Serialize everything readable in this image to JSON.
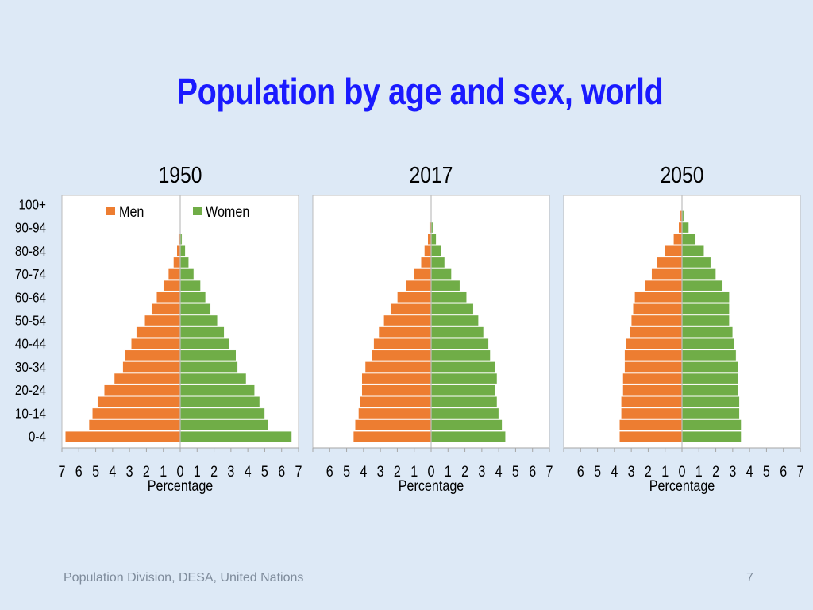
{
  "slide": {
    "title": "Population by age and sex, world",
    "footer": "Population Division, DESA, United Nations",
    "page_number": "7"
  },
  "colors": {
    "men": "#ed7d31",
    "women": "#70ad47",
    "bar_edge": "#ffffff",
    "panel_bg": "#ffffff",
    "panel_border": "#bcbcbc",
    "title": "#1a1aff"
  },
  "chart_data": [
    {
      "type": "bar",
      "subtype": "population-pyramid",
      "title": "1950",
      "xlabel": "Percentage",
      "xlim": [
        -7,
        7
      ],
      "xticks": [
        "7",
        "6",
        "5",
        "4",
        "3",
        "2",
        "1",
        "0",
        "1",
        "2",
        "3",
        "4",
        "5",
        "6",
        "7"
      ],
      "legend": {
        "placement": "top",
        "entries": [
          "Men",
          "Women"
        ]
      },
      "categories": [
        "0-4",
        "5-9",
        "10-14",
        "15-19",
        "20-24",
        "25-29",
        "30-34",
        "35-39",
        "40-44",
        "45-49",
        "50-54",
        "55-59",
        "60-64",
        "65-69",
        "70-74",
        "75-79",
        "80-84",
        "85-89",
        "90-94",
        "95-99",
        "100+"
      ],
      "category_labels_shown": [
        "100+",
        "90-94",
        "80-84",
        "70-74",
        "60-64",
        "50-54",
        "40-44",
        "30-34",
        "20-24",
        "10-14",
        "0-4"
      ],
      "series": [
        {
          "name": "Men",
          "values": [
            6.8,
            5.4,
            5.2,
            4.9,
            4.5,
            3.9,
            3.4,
            3.3,
            2.9,
            2.6,
            2.1,
            1.7,
            1.4,
            1.0,
            0.7,
            0.4,
            0.2,
            0.1,
            0.0,
            0.0,
            0.0
          ]
        },
        {
          "name": "Women",
          "values": [
            6.6,
            5.2,
            5.0,
            4.7,
            4.4,
            3.9,
            3.4,
            3.3,
            2.9,
            2.6,
            2.2,
            1.8,
            1.5,
            1.2,
            0.8,
            0.5,
            0.3,
            0.1,
            0.0,
            0.0,
            0.0
          ]
        }
      ]
    },
    {
      "type": "bar",
      "subtype": "population-pyramid",
      "title": "2017",
      "xlabel": "Percentage",
      "xlim": [
        -7,
        7
      ],
      "xticks": [
        "7",
        "6",
        "5",
        "4",
        "3",
        "2",
        "1",
        "0",
        "1",
        "2",
        "3",
        "4",
        "5",
        "6",
        "7"
      ],
      "categories": [
        "0-4",
        "5-9",
        "10-14",
        "15-19",
        "20-24",
        "25-29",
        "30-34",
        "35-39",
        "40-44",
        "45-49",
        "50-54",
        "55-59",
        "60-64",
        "65-69",
        "70-74",
        "75-79",
        "80-84",
        "85-89",
        "90-94",
        "95-99",
        "100+"
      ],
      "category_labels_shown": [
        "100+",
        "90-94",
        "80-84",
        "70-74",
        "60-64",
        "50-54",
        "40-44",
        "30-34",
        "20-24",
        "10-14",
        "0-4"
      ],
      "series": [
        {
          "name": "Men",
          "values": [
            4.6,
            4.5,
            4.3,
            4.2,
            4.1,
            4.1,
            3.9,
            3.5,
            3.4,
            3.1,
            2.8,
            2.4,
            2.0,
            1.5,
            1.0,
            0.6,
            0.4,
            0.2,
            0.1,
            0.0,
            0.0
          ]
        },
        {
          "name": "Women",
          "values": [
            4.4,
            4.2,
            4.0,
            3.9,
            3.8,
            3.9,
            3.8,
            3.5,
            3.4,
            3.1,
            2.8,
            2.5,
            2.1,
            1.7,
            1.2,
            0.8,
            0.6,
            0.3,
            0.1,
            0.0,
            0.0
          ]
        }
      ]
    },
    {
      "type": "bar",
      "subtype": "population-pyramid",
      "title": "2050",
      "xlabel": "Percentage",
      "xlim": [
        -7,
        7
      ],
      "xticks": [
        "7",
        "6",
        "5",
        "4",
        "3",
        "2",
        "1",
        "0",
        "1",
        "2",
        "3",
        "4",
        "5",
        "6",
        "7"
      ],
      "categories": [
        "0-4",
        "5-9",
        "10-14",
        "15-19",
        "20-24",
        "25-29",
        "30-34",
        "35-39",
        "40-44",
        "45-49",
        "50-54",
        "55-59",
        "60-64",
        "65-69",
        "70-74",
        "75-79",
        "80-84",
        "85-89",
        "90-94",
        "95-99",
        "100+"
      ],
      "category_labels_shown": [
        "100+",
        "90-94",
        "80-84",
        "70-74",
        "60-64",
        "50-54",
        "40-44",
        "30-34",
        "20-24",
        "10-14",
        "0-4"
      ],
      "series": [
        {
          "name": "Men",
          "values": [
            3.7,
            3.7,
            3.6,
            3.6,
            3.5,
            3.5,
            3.4,
            3.4,
            3.3,
            3.1,
            3.0,
            2.9,
            2.8,
            2.2,
            1.8,
            1.5,
            1.0,
            0.5,
            0.2,
            0.1,
            0.0
          ]
        },
        {
          "name": "Women",
          "values": [
            3.5,
            3.5,
            3.4,
            3.4,
            3.3,
            3.3,
            3.3,
            3.2,
            3.1,
            3.0,
            2.8,
            2.8,
            2.8,
            2.4,
            2.0,
            1.7,
            1.3,
            0.8,
            0.4,
            0.1,
            0.0
          ]
        }
      ]
    }
  ]
}
